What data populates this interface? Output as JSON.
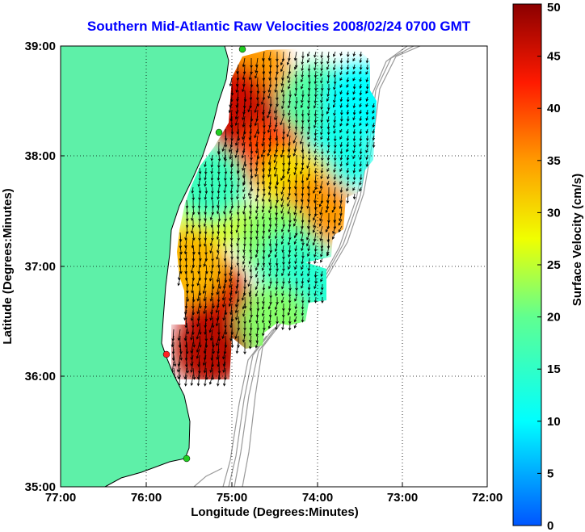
{
  "chart_data": {
    "type": "heatmap",
    "title": "Southern Mid-Atlantic Raw Velocities 2008/02/24 0700 GMT",
    "xlabel": "Longitude (Degrees:Minutes)",
    "ylabel": "Latitude (Degrees:Minutes)",
    "x_ticks": [
      {
        "value": -77,
        "label": "77:00"
      },
      {
        "value": -76,
        "label": "76:00"
      },
      {
        "value": -75,
        "label": "75:00"
      },
      {
        "value": -74,
        "label": "74:00"
      },
      {
        "value": -73,
        "label": "73:00"
      },
      {
        "value": -72,
        "label": "72:00"
      }
    ],
    "y_ticks": [
      {
        "value": 35,
        "label": "35:00"
      },
      {
        "value": 36,
        "label": "36:00"
      },
      {
        "value": 37,
        "label": "37:00"
      },
      {
        "value": 38,
        "label": "38:00"
      },
      {
        "value": 39,
        "label": "39:00"
      }
    ],
    "xlim": [
      -77,
      -72
    ],
    "ylim": [
      35,
      39
    ],
    "grid": true,
    "colorbar": {
      "label": "Surface Velocity (cm/s)",
      "range": [
        0,
        50
      ],
      "ticks": [
        "0",
        "5",
        "10",
        "15",
        "20",
        "25",
        "30",
        "35",
        "40",
        "45",
        "50"
      ],
      "colormap": "jet"
    },
    "velocity_field": [
      {
        "lat": 38.75,
        "lon": -74.75,
        "speed": 35
      },
      {
        "lat": 38.5,
        "lon": -75.0,
        "speed": 45
      },
      {
        "lat": 38.25,
        "lon": -74.75,
        "speed": 46
      },
      {
        "lat": 38.0,
        "lon": -74.5,
        "speed": 40
      },
      {
        "lat": 38.5,
        "lon": -74.0,
        "speed": 18
      },
      {
        "lat": 38.5,
        "lon": -73.5,
        "speed": 10
      },
      {
        "lat": 38.0,
        "lon": -73.75,
        "speed": 12
      },
      {
        "lat": 37.75,
        "lon": -74.25,
        "speed": 30
      },
      {
        "lat": 37.5,
        "lon": -74.0,
        "speed": 35
      },
      {
        "lat": 37.25,
        "lon": -74.5,
        "speed": 22
      },
      {
        "lat": 37.0,
        "lon": -74.25,
        "speed": 16
      },
      {
        "lat": 36.75,
        "lon": -74.0,
        "speed": 14
      },
      {
        "lat": 36.5,
        "lon": -74.5,
        "speed": 22
      },
      {
        "lat": 36.75,
        "lon": -75.25,
        "speed": 45
      },
      {
        "lat": 36.25,
        "lon": -75.25,
        "speed": 47
      },
      {
        "lat": 37.5,
        "lon": -75.25,
        "speed": 26
      },
      {
        "lat": 37.0,
        "lon": -75.5,
        "speed": 33
      },
      {
        "lat": 37.75,
        "lon": -75.25,
        "speed": 16
      }
    ]
  },
  "map_data": {
    "land_color": "#5ef0a8",
    "bathymetry_color": "#999999",
    "coastline_color": "#000000",
    "station_colors": [
      "#22cc22",
      "#22cc22",
      "#ff2222",
      "#22cc22"
    ]
  }
}
